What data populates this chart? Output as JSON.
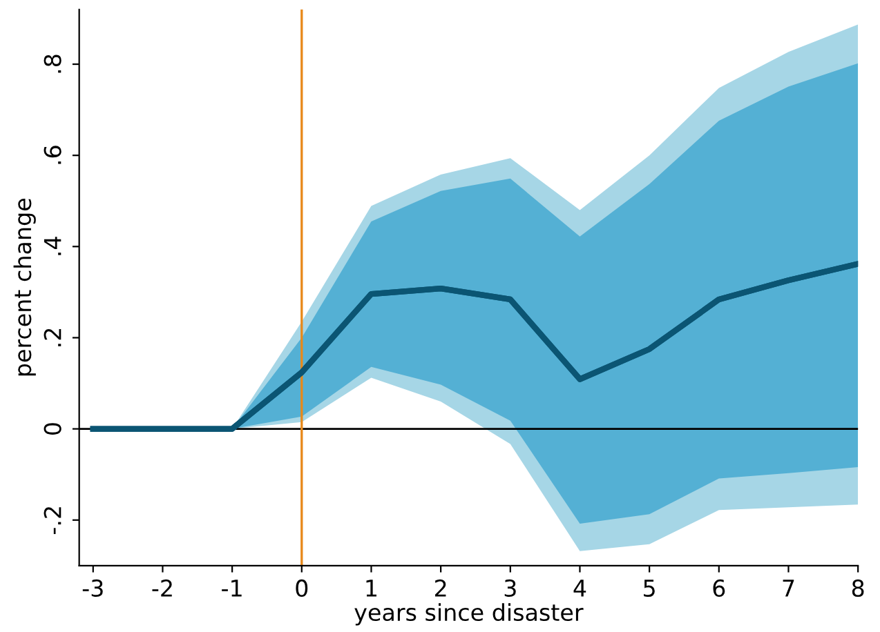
{
  "chart_data": {
    "type": "line",
    "xlabel": "years since disaster",
    "ylabel": "percent change",
    "x": [
      -3,
      -2,
      -1,
      0,
      1,
      2,
      3,
      4,
      5,
      6,
      7,
      8
    ],
    "series": [
      {
        "color": "#0b5573",
        "values": [
          0,
          0,
          0,
          0.124,
          0.296,
          0.308,
          0.284,
          0.109,
          0.175,
          0.284,
          0.326,
          0.362
        ],
        "lower": [
          0,
          0,
          0,
          0.015,
          0.112,
          0.06,
          -0.033,
          -0.268,
          -0.253,
          -0.178,
          -0.172,
          -0.166
        ],
        "upper": [
          0,
          0,
          0,
          0.235,
          0.489,
          0.558,
          0.594,
          0.48,
          0.6,
          0.748,
          0.827,
          0.887
        ]
      },
      {
        "color": "#0b5573",
        "values": [
          0,
          0,
          0,
          0.124,
          0.296,
          0.308,
          0.284,
          0.109,
          0.175,
          0.284,
          0.326,
          0.362
        ],
        "lower": [
          0,
          0,
          0,
          0.027,
          0.136,
          0.097,
          0.018,
          -0.208,
          -0.187,
          -0.109,
          -0.097,
          -0.084
        ],
        "upper": [
          0,
          0,
          0,
          0.2,
          0.455,
          0.522,
          0.549,
          0.422,
          0.537,
          0.676,
          0.751,
          0.802
        ]
      }
    ],
    "xlim": [
      -3.2,
      8
    ],
    "xticks": [
      -3,
      -2,
      -1,
      0,
      1,
      2,
      3,
      4,
      5,
      6,
      7,
      8
    ],
    "ylim": [
      -0.3,
      0.92
    ],
    "yticks": [
      {
        "value": -0.2,
        "label": "-.2"
      },
      0,
      {
        "value": 0.2,
        "label": ".2"
      },
      {
        "value": 0.4,
        "label": ".4"
      },
      {
        "value": 0.6,
        "label": ".6"
      },
      {
        "value": 0.8,
        "label": ".8"
      }
    ],
    "ref_lines": [
      {
        "axis": "y",
        "value": 0,
        "color": "#000000"
      },
      {
        "axis": "x",
        "value": 0,
        "color": "#e8891a"
      }
    ],
    "grid": false,
    "legend": false
  }
}
